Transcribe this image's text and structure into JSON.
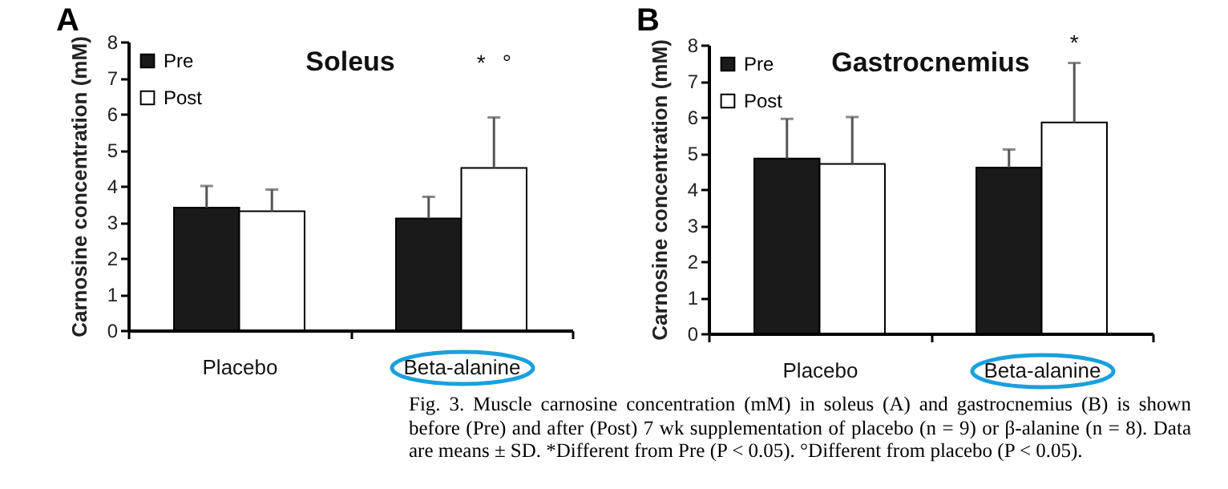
{
  "chart_data": [
    {
      "type": "bar",
      "title": "Soleus",
      "ylabel": "Carnosine concentration (mM)",
      "categories": [
        "Placebo",
        "Beta-alanine"
      ],
      "series": [
        {
          "name": "Pre",
          "color": "#1a1a1a",
          "values": [
            3.4,
            3.1
          ],
          "errors": [
            [
              3.4,
              4.0
            ],
            [
              3.1,
              3.7
            ]
          ]
        },
        {
          "name": "Post",
          "color": "#ffffff",
          "values": [
            3.3,
            4.5
          ],
          "errors": [
            [
              3.3,
              3.9
            ],
            [
              4.5,
              5.9
            ]
          ]
        }
      ],
      "ylim": [
        0,
        8
      ],
      "yticks": [
        0,
        1,
        2,
        3,
        4,
        5,
        6,
        7,
        8
      ],
      "grid": false,
      "legend": "top left",
      "annotations": [
        "A",
        "*",
        "°"
      ]
    },
    {
      "type": "bar",
      "title": "Gastrocnemius",
      "ylabel": "Carnosine concentration (mM)",
      "categories": [
        "Placebo",
        "Beta-alanine"
      ],
      "series": [
        {
          "name": "Pre",
          "color": "#1a1a1a",
          "values": [
            4.85,
            4.6
          ],
          "errors": [
            [
              4.85,
              5.95
            ],
            [
              4.6,
              5.1
            ]
          ]
        },
        {
          "name": "Post",
          "color": "#ffffff",
          "values": [
            4.7,
            5.85
          ],
          "errors": [
            [
              4.7,
              6.0
            ],
            [
              5.85,
              7.5
            ]
          ]
        }
      ],
      "ylim": [
        0,
        8
      ],
      "yticks": [
        0,
        1,
        2,
        3,
        4,
        5,
        6,
        7,
        8
      ],
      "grid": false,
      "legend": "top left",
      "annotations": [
        "B",
        "*",
        "Fig. 3. Muscle carnosine concentration (mM) in soleus (A) and gastrocnemius (B) is shown before (Pre) and after (Post) 7 wk supplementation of placebo (n = 9) or β-alanine (n = 8). Data are means ± SD. *Different from Pre (P < 0.05). °Different from placebo (P < 0.05)."
      ]
    }
  ]
}
